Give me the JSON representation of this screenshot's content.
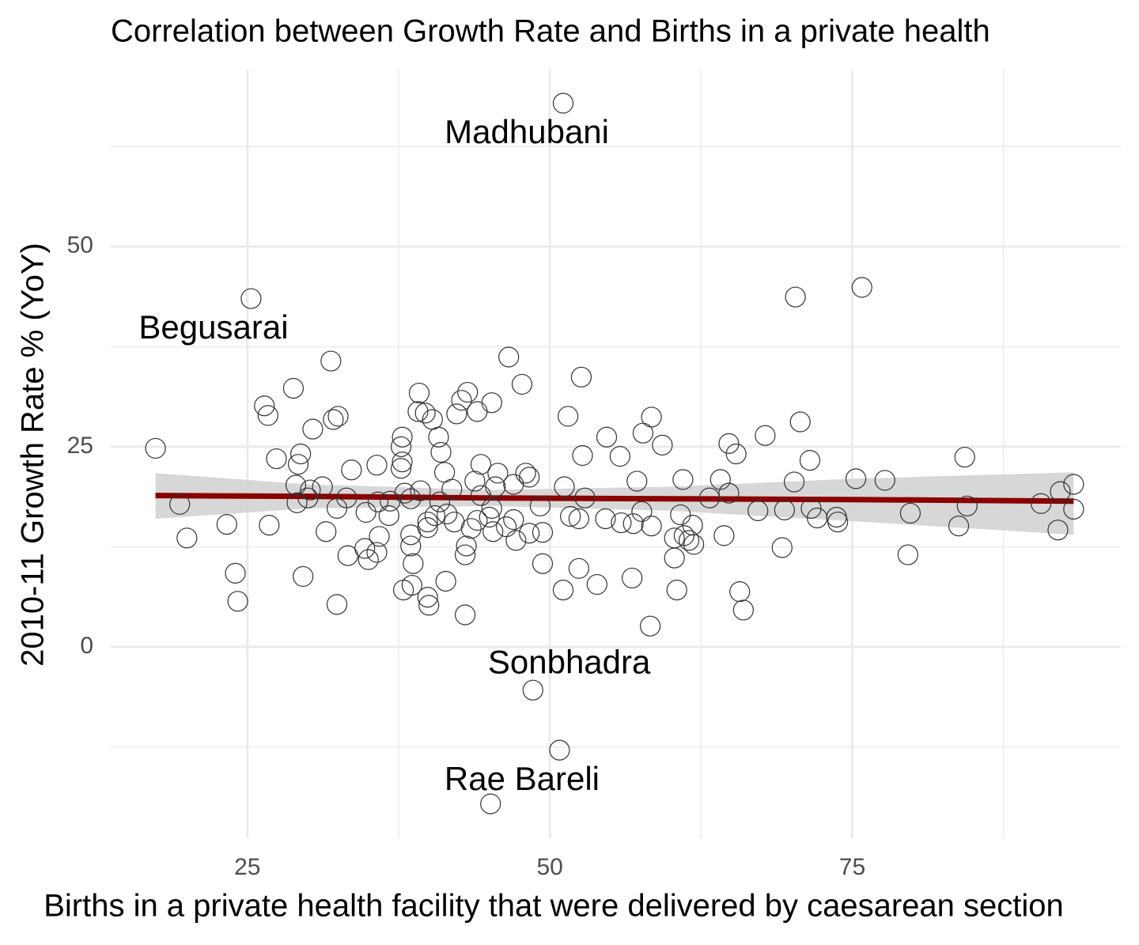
{
  "chart_data": {
    "type": "scatter",
    "title": "Correlation between Growth Rate and Births in a private health",
    "xlabel": "Births in a private health facility that were delivered by caesarean section",
    "ylabel": "2010-11 Growth Rate % (YoY)",
    "xlim": [
      13.7,
      97.2
    ],
    "ylim": [
      -23.9,
      72.1
    ],
    "xticks": [
      25,
      50,
      75
    ],
    "yticks": [
      0,
      25,
      50
    ],
    "grid": true,
    "minor_grid": true,
    "color": "#333333",
    "x": [
      51.1,
      75.8,
      70.3,
      25.3,
      31.9,
      46.6,
      52.6,
      28.8,
      47.7,
      26.4,
      39.2,
      43.2,
      45.2,
      42.7,
      26.7,
      32.5,
      32.1,
      51.5,
      70.7,
      58.4,
      39.1,
      39.7,
      40.3,
      44.0,
      42.3,
      30.4,
      37.8,
      40.8,
      54.7,
      57.7,
      67.8,
      64.8,
      17.4,
      59.3,
      37.7,
      41.0,
      65.4,
      29.4,
      27.4,
      52.7,
      55.8,
      84.3,
      71.5,
      29.2,
      35.7,
      37.8,
      44.3,
      33.6,
      41.3,
      37.7,
      45.7,
      48.0,
      48.3,
      75.3,
      77.7,
      61.0,
      64.1,
      57.2,
      70.2,
      43.8,
      47.0,
      51.2,
      93.3,
      29.0,
      31.2,
      41.9,
      45.5,
      30.2,
      39.3,
      92.2,
      64.8,
      38.0,
      52.9,
      63.2,
      33.2,
      30.0,
      36.8,
      38.5,
      44.3,
      40.9,
      35.8,
      29.1,
      19.4,
      90.6,
      84.5,
      49.2,
      32.4,
      71.6,
      45.2,
      93.3,
      69.4,
      67.2,
      34.8,
      41.5,
      57.6,
      60.8,
      79.8,
      36.7,
      40.5,
      45.0,
      51.7,
      52.4,
      54.6,
      73.7,
      72.1,
      39.9,
      42.1,
      44.0,
      47.0,
      23.3,
      26.8,
      55.9,
      56.9,
      58.4,
      73.8,
      83.8,
      61.8,
      39.9,
      43.5,
      46.4,
      31.5,
      45.3,
      48.3,
      49.4,
      35.9,
      38.5,
      61.1,
      61.5,
      64.4,
      60.3,
      61.9,
      47.2,
      20.0,
      92.0,
      38.5,
      43.1,
      34.7,
      69.2,
      35.7,
      33.3,
      43.0,
      79.6,
      35.0,
      60.3,
      38.7,
      49.4,
      52.4,
      24.0,
      29.6,
      56.8,
      41.4,
      53.9,
      38.6,
      37.9,
      51.1,
      60.5,
      65.7,
      39.9,
      24.2,
      32.4,
      40.0,
      66.0,
      43.0,
      58.3,
      48.6,
      50.8,
      45.1
    ],
    "values": [
      67.9,
      44.9,
      43.7,
      43.5,
      35.7,
      36.2,
      33.7,
      32.3,
      32.8,
      30.1,
      31.7,
      31.8,
      30.5,
      30.8,
      28.9,
      28.8,
      28.4,
      28.8,
      28.1,
      28.7,
      29.4,
      29.2,
      28.4,
      29.4,
      29.1,
      27.2,
      26.2,
      26.2,
      26.2,
      26.7,
      26.4,
      25.4,
      24.8,
      25.2,
      25.0,
      24.3,
      24.1,
      24.1,
      23.5,
      23.9,
      23.8,
      23.7,
      23.3,
      22.8,
      22.7,
      23.1,
      22.8,
      22.1,
      21.8,
      22.3,
      21.7,
      21.7,
      21.2,
      21.0,
      20.8,
      20.9,
      20.9,
      20.7,
      20.6,
      20.7,
      20.3,
      20.0,
      20.3,
      20.2,
      20.0,
      19.7,
      20.0,
      19.6,
      19.5,
      19.4,
      19.2,
      19.2,
      18.6,
      18.6,
      18.6,
      18.6,
      18.2,
      18.5,
      18.9,
      18.1,
      18.1,
      18.0,
      17.8,
      17.9,
      17.6,
      17.6,
      17.3,
      17.3,
      17.3,
      17.2,
      17.1,
      17.0,
      16.8,
      16.6,
      16.9,
      16.5,
      16.7,
      16.4,
      16.4,
      16.2,
      16.3,
      16.0,
      16.0,
      16.2,
      16.1,
      15.6,
      15.6,
      15.8,
      15.9,
      15.3,
      15.2,
      15.5,
      15.4,
      15.1,
      15.6,
      15.1,
      15.2,
      14.9,
      14.8,
      15.0,
      14.4,
      14.4,
      14.2,
      14.3,
      13.8,
      14.0,
      13.9,
      13.3,
      13.9,
      13.6,
      12.8,
      13.3,
      13.6,
      14.6,
      12.6,
      12.6,
      12.3,
      12.4,
      11.8,
      11.4,
      11.5,
      11.5,
      10.9,
      11.1,
      10.4,
      10.4,
      9.8,
      9.2,
      8.8,
      8.6,
      8.2,
      7.8,
      7.7,
      7.1,
      7.1,
      7.1,
      6.9,
      6.2,
      5.7,
      5.3,
      5.2,
      4.6,
      4.0,
      2.6,
      -5.4,
      -12.9,
      -19.6
    ],
    "trend": {
      "color": "#8b0000",
      "band_color": "#d3d3d3",
      "x": [
        17.4,
        30,
        45,
        60,
        75,
        93.3
      ],
      "values": [
        18.9,
        18.8,
        18.6,
        18.5,
        18.4,
        18.2
      ],
      "lower": [
        16.0,
        17.3,
        17.6,
        17.0,
        15.7,
        14.0
      ],
      "upper": [
        21.7,
        20.3,
        19.6,
        20.0,
        21.0,
        21.8
      ]
    },
    "annotations": [
      {
        "text": "Madhubani",
        "x": 48.1,
        "y": 64.0
      },
      {
        "text": "Begusarai",
        "x": 22.2,
        "y": 39.6
      },
      {
        "text": "Sonbhadra",
        "x": 51.6,
        "y": -2.2
      },
      {
        "text": "Rae Bareli",
        "x": 47.7,
        "y": -16.8
      }
    ]
  }
}
